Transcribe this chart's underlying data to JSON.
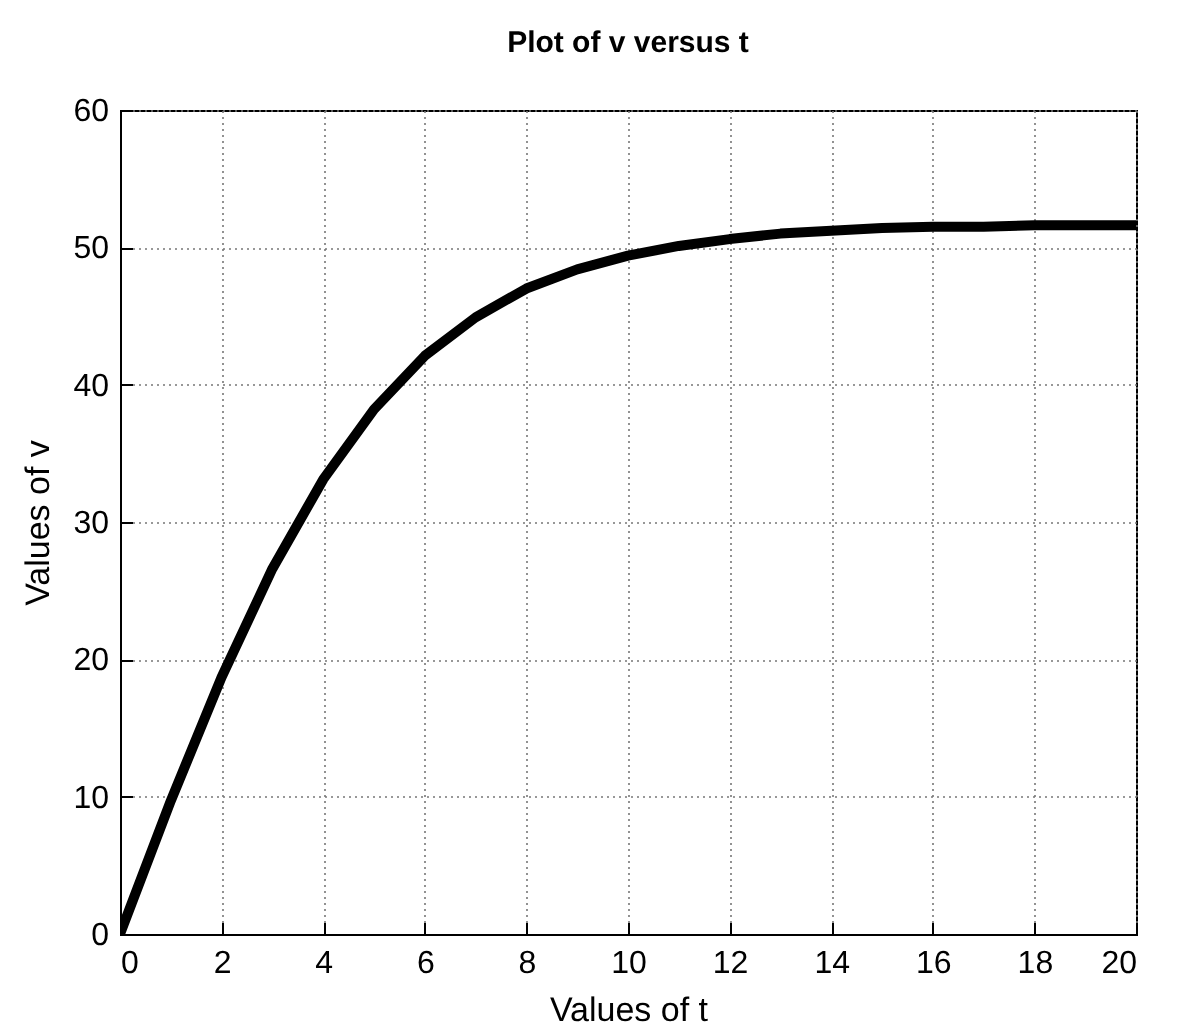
{
  "chart_data": {
    "type": "line",
    "title": "Plot of v versus t",
    "xlabel": "Values of t",
    "ylabel": "Values of v",
    "x": [
      0,
      1,
      2,
      3,
      4,
      5,
      6,
      7,
      8,
      9,
      10,
      11,
      12,
      13,
      14,
      15,
      16,
      17,
      18,
      19,
      20
    ],
    "series": [
      {
        "color": "#000000",
        "values": [
          0,
          9.7,
          18.7,
          26.6,
          33.1,
          38.2,
          42.1,
          44.9,
          47.0,
          48.4,
          49.4,
          50.1,
          50.6,
          51.0,
          51.2,
          51.4,
          51.5,
          51.5,
          51.6,
          51.6,
          51.6
        ]
      }
    ],
    "xlim": [
      0,
      20
    ],
    "xticks": [
      0,
      2,
      4,
      6,
      8,
      10,
      12,
      14,
      16,
      18,
      20
    ],
    "ylim": [
      0,
      60
    ],
    "yticks": [
      0,
      10,
      20,
      30,
      40,
      50,
      60
    ],
    "grid": true,
    "line_style": "solid",
    "marker": "none"
  }
}
